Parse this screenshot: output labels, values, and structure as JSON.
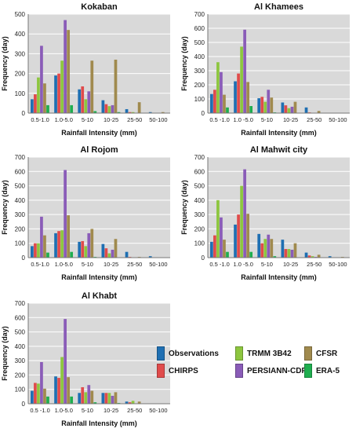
{
  "legend": {
    "items": [
      {
        "label": "Observations",
        "color": "#1f6fb2"
      },
      {
        "label": "TRMM 3B42",
        "color": "#8dc63f"
      },
      {
        "label": "CFSR",
        "color": "#a08a4e"
      },
      {
        "label": "CHIRPS",
        "color": "#e04b4b"
      },
      {
        "label": "PERSIANN-CDR",
        "color": "#8a5cb8"
      },
      {
        "label": "ERA-5",
        "color": "#1fae4f"
      }
    ]
  },
  "chart_data": [
    {
      "type": "bar",
      "title": "Kokaban",
      "xlabel": "Rainfall Intensity (mm)",
      "ylabel": "Frequency (day)",
      "ylim": [
        0,
        500
      ],
      "yticks": [
        0,
        100,
        200,
        300,
        400,
        500
      ],
      "grid": true,
      "categories": [
        "0.5-1.0",
        "1.0-5.0",
        "5-10",
        "10-25",
        "25-50",
        "50-100"
      ],
      "series": [
        {
          "name": "Observations",
          "values": [
            70,
            190,
            120,
            65,
            20,
            5
          ]
        },
        {
          "name": "CHIRPS",
          "values": [
            95,
            200,
            135,
            45,
            5,
            0
          ]
        },
        {
          "name": "TRMM 3B42",
          "values": [
            180,
            265,
            70,
            35,
            5,
            0
          ]
        },
        {
          "name": "PERSIANN-CDR",
          "values": [
            340,
            470,
            110,
            40,
            0,
            0
          ]
        },
        {
          "name": "CFSR",
          "values": [
            150,
            420,
            265,
            270,
            55,
            5
          ]
        },
        {
          "name": "ERA-5",
          "values": [
            40,
            40,
            10,
            5,
            0,
            0
          ]
        }
      ]
    },
    {
      "type": "bar",
      "title": "Al Khamees",
      "xlabel": "Rainfall Intensity (mm)",
      "ylabel": "Frequency (day)",
      "ylim": [
        0,
        700
      ],
      "yticks": [
        0,
        100,
        200,
        300,
        400,
        500,
        600,
        700
      ],
      "grid": true,
      "categories": [
        "0.5 -1.0",
        "1.0 -5.0",
        "5-10",
        "10-25",
        "25-50",
        "50-100"
      ],
      "series": [
        {
          "name": "Observations",
          "values": [
            135,
            225,
            105,
            75,
            40,
            0
          ]
        },
        {
          "name": "CHIRPS",
          "values": [
            165,
            280,
            115,
            55,
            5,
            0
          ]
        },
        {
          "name": "TRMM 3B42",
          "values": [
            360,
            470,
            80,
            35,
            0,
            0
          ]
        },
        {
          "name": "PERSIANN-CDR",
          "values": [
            290,
            590,
            165,
            45,
            0,
            0
          ]
        },
        {
          "name": "CFSR",
          "values": [
            130,
            220,
            110,
            80,
            15,
            0
          ]
        },
        {
          "name": "ERA-5",
          "values": [
            40,
            50,
            5,
            0,
            0,
            0
          ]
        }
      ]
    },
    {
      "type": "bar",
      "title": "Al Rojom",
      "xlabel": "Rainfall Intensity (mm)",
      "ylabel": "Frequency (day)",
      "ylim": [
        0,
        700
      ],
      "yticks": [
        0,
        100,
        200,
        300,
        400,
        500,
        600,
        700
      ],
      "grid": true,
      "categories": [
        "0.5-1.0",
        "1.0-5.0",
        "5-10",
        "10-25",
        "25-50",
        "50-100"
      ],
      "series": [
        {
          "name": "Observations",
          "values": [
            80,
            170,
            110,
            95,
            40,
            10
          ]
        },
        {
          "name": "CHIRPS",
          "values": [
            100,
            185,
            115,
            65,
            5,
            0
          ]
        },
        {
          "name": "TRMM 3B42",
          "values": [
            100,
            190,
            80,
            30,
            0,
            0
          ]
        },
        {
          "name": "PERSIANN-CDR",
          "values": [
            285,
            610,
            170,
            55,
            0,
            0
          ]
        },
        {
          "name": "CFSR",
          "values": [
            155,
            295,
            200,
            130,
            5,
            0
          ]
        },
        {
          "name": "ERA-5",
          "values": [
            35,
            40,
            5,
            0,
            0,
            0
          ]
        }
      ]
    },
    {
      "type": "bar",
      "title": "Al Mahwit city",
      "xlabel": "Rainfall Intensity (mm)",
      "ylabel": "Frequency (day)",
      "ylim": [
        0,
        700
      ],
      "yticks": [
        0,
        100,
        200,
        300,
        400,
        500,
        600,
        700
      ],
      "grid": true,
      "categories": [
        "0.5 -1.0",
        "1.0 -5.0",
        "5-10",
        "10-25",
        "25-50",
        "50-100"
      ],
      "series": [
        {
          "name": "Observations",
          "values": [
            110,
            230,
            165,
            125,
            35,
            10
          ]
        },
        {
          "name": "CHIRPS",
          "values": [
            155,
            300,
            100,
            60,
            15,
            0
          ]
        },
        {
          "name": "TRMM 3B42",
          "values": [
            400,
            500,
            130,
            60,
            10,
            0
          ]
        },
        {
          "name": "PERSIANN-CDR",
          "values": [
            280,
            615,
            160,
            55,
            5,
            0
          ]
        },
        {
          "name": "CFSR",
          "values": [
            125,
            305,
            130,
            100,
            20,
            5
          ]
        },
        {
          "name": "ERA-5",
          "values": [
            40,
            40,
            10,
            0,
            0,
            0
          ]
        }
      ]
    },
    {
      "type": "bar",
      "title": "Al Khabt",
      "xlabel": "Rainfall Intensity (mm)",
      "ylabel": "Frequency (day)",
      "ylim": [
        0,
        700
      ],
      "yticks": [
        0,
        100,
        200,
        300,
        400,
        500,
        600,
        700
      ],
      "grid": true,
      "categories": [
        "0.5 -1.0",
        "1.0-5.0",
        "5-10",
        "10-25",
        "25-50",
        "50-100"
      ],
      "series": [
        {
          "name": "Observations",
          "values": [
            90,
            190,
            75,
            75,
            15,
            0
          ]
        },
        {
          "name": "CHIRPS",
          "values": [
            145,
            180,
            115,
            75,
            10,
            0
          ]
        },
        {
          "name": "TRMM 3B42",
          "values": [
            140,
            325,
            80,
            75,
            20,
            0
          ]
        },
        {
          "name": "PERSIANN-CDR",
          "values": [
            290,
            590,
            130,
            55,
            0,
            0
          ]
        },
        {
          "name": "CFSR",
          "values": [
            105,
            185,
            90,
            80,
            15,
            0
          ]
        },
        {
          "name": "ERA-5",
          "values": [
            50,
            50,
            10,
            5,
            0,
            0
          ]
        }
      ]
    }
  ]
}
